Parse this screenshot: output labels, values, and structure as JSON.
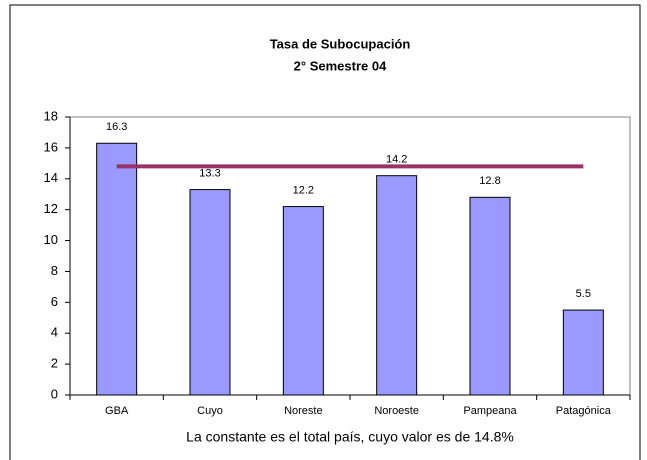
{
  "chart_data": {
    "type": "bar",
    "title": "Tasa de Subocupación",
    "subtitle": "2° Semestre 04",
    "categories": [
      "GBA",
      "Cuyo",
      "Noreste",
      "Noroeste",
      "Pampeana",
      "Patagónica"
    ],
    "values": [
      16.3,
      13.3,
      12.2,
      14.2,
      12.8,
      5.5
    ],
    "color": "#9999ff",
    "reference_line": {
      "value": 14.8,
      "color": "#993366"
    },
    "ylim": [
      0,
      18
    ],
    "yticks": [
      0,
      2,
      4,
      6,
      8,
      10,
      12,
      14,
      16,
      18
    ],
    "grid": false,
    "annotation": "La constante es el total país, cuyo valor es de 14.8%"
  }
}
